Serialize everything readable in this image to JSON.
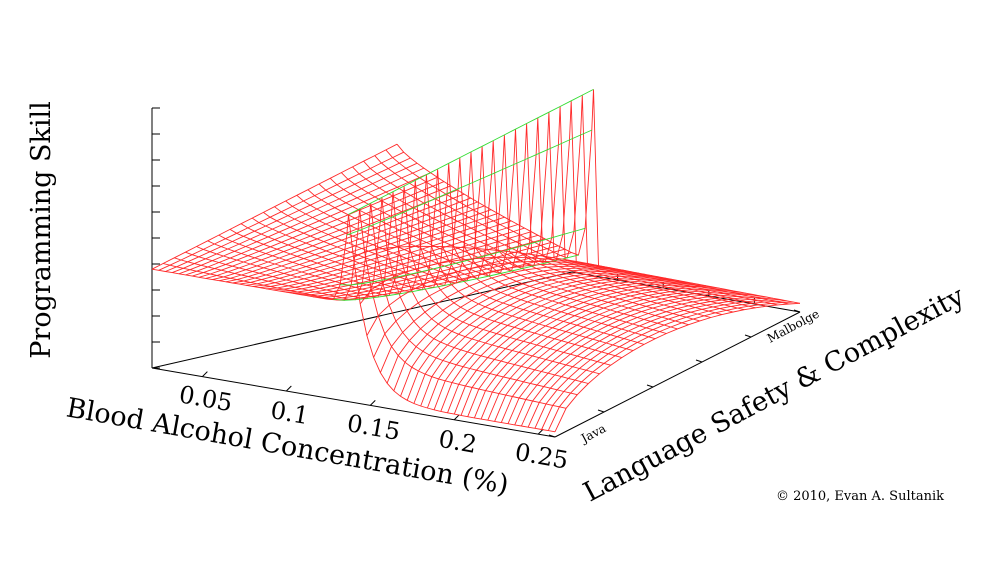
{
  "chart_data": {
    "type": "surface",
    "title": "",
    "xlabel": "Blood Alcohol Concentration (%)",
    "ylabel": "Language Safety & Complexity",
    "zlabel": "Programming Skill",
    "x_ticks": [
      "0.05",
      "0.1",
      "0.15",
      "0.2",
      "0.25"
    ],
    "y_tick_labels": [
      "Java",
      "Malbolge"
    ],
    "xlim": [
      0.02,
      0.26
    ],
    "peak_x": 0.137,
    "peak_skill_fraction": 0.72,
    "baseline_skill_fraction": 0.38,
    "dip_skill_fraction": 0.05,
    "colors": {
      "surface": "#ff2a2a",
      "peak_band": "#33dd33"
    }
  },
  "credit": "© 2010, Evan A. Sultanik"
}
